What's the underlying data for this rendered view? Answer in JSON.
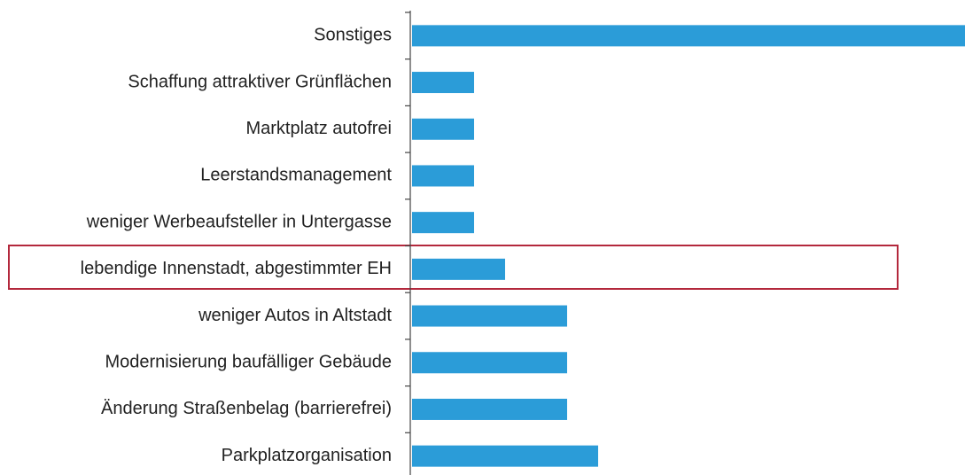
{
  "chart_data": {
    "type": "bar",
    "orientation": "horizontal",
    "categories": [
      "Sonstiges",
      "Schaffung attraktiver Grünflächen",
      "Marktplatz autofrei",
      "Leerstandsmanagement",
      "weniger Werbeaufsteller in Untergasse",
      "lebendige Innenstadt, abgestimmter EH",
      "weniger Autos in Altstadt",
      "Modernisierung baufälliger Gebäude",
      "Änderung Straßenbelag (barrierefrei)",
      "Parkplatzorganisation"
    ],
    "values": [
      18,
      2,
      2,
      2,
      2,
      3,
      5,
      5,
      5,
      6
    ],
    "color": "#2b9cd8"
  }
}
